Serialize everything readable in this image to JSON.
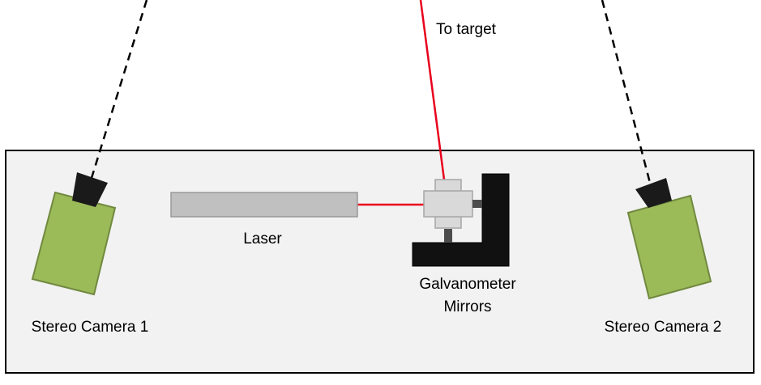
{
  "labels": {
    "to_target": "To target",
    "laser": "Laser",
    "galvo_line1": "Galvanometer",
    "galvo_line2": "Mirrors",
    "camera1": "Stereo Camera 1",
    "camera2": "Stereo Camera 2"
  },
  "colors": {
    "beam": "#e8001c",
    "camera_body": "#9bbb59",
    "camera_outline": "#71893f",
    "lens": "#1a1a1a",
    "laser_body": "#c0c0c0",
    "mirror_block": "#d9d9d9",
    "mount": "#111111",
    "enclosure_fill": "#f2f2f2",
    "enclosure_stroke": "#000000"
  }
}
